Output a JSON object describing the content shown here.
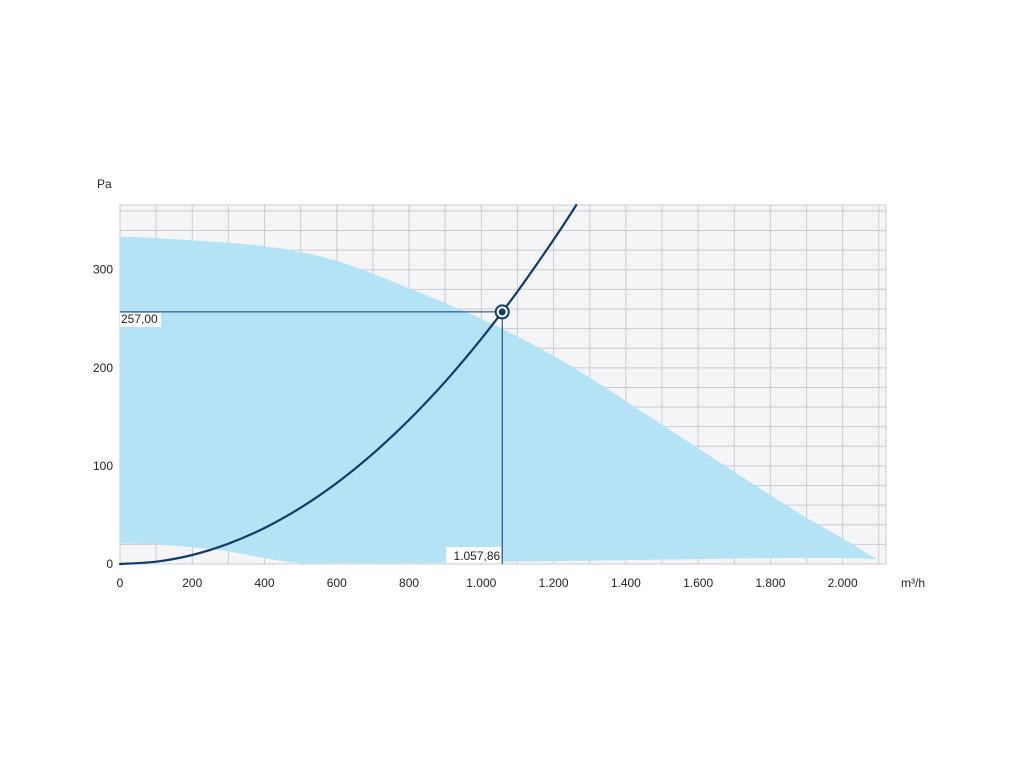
{
  "chart_data": {
    "type": "area",
    "title": "",
    "xlabel": "m³/h",
    "ylabel": "Pa",
    "xlim": [
      0,
      2120
    ],
    "ylim": [
      0,
      366
    ],
    "grid": true,
    "x_ticks": [
      {
        "value": 0,
        "label": "0"
      },
      {
        "value": 200,
        "label": "200"
      },
      {
        "value": 400,
        "label": "400"
      },
      {
        "value": 600,
        "label": "600"
      },
      {
        "value": 800,
        "label": "800"
      },
      {
        "value": 1000,
        "label": "1.000"
      },
      {
        "value": 1200,
        "label": "1.200"
      },
      {
        "value": 1400,
        "label": "1.400"
      },
      {
        "value": 1600,
        "label": "1.600"
      },
      {
        "value": 1800,
        "label": "1.800"
      },
      {
        "value": 2000,
        "label": "2.000"
      }
    ],
    "y_ticks": [
      {
        "value": 0,
        "label": "0"
      },
      {
        "value": 100,
        "label": "100"
      },
      {
        "value": 200,
        "label": "200"
      },
      {
        "value": 300,
        "label": "300"
      }
    ],
    "x_minor_step": 100,
    "y_minor_step": 20,
    "operating_range": {
      "color": "#b3e3f4",
      "upper": [
        [
          0,
          334
        ],
        [
          200,
          330
        ],
        [
          400,
          324
        ],
        [
          500,
          318
        ],
        [
          600,
          309
        ],
        [
          700,
          296
        ],
        [
          800,
          281
        ],
        [
          900,
          266
        ],
        [
          1000,
          250
        ],
        [
          1100,
          232
        ],
        [
          1200,
          212
        ],
        [
          1300,
          190
        ],
        [
          1400,
          166
        ],
        [
          1500,
          142
        ],
        [
          1600,
          118
        ],
        [
          1700,
          94
        ],
        [
          1800,
          70
        ],
        [
          1900,
          47
        ],
        [
          2000,
          26
        ],
        [
          2093,
          5
        ]
      ],
      "lower": [
        [
          2093,
          5
        ],
        [
          2000,
          6
        ],
        [
          1800,
          6
        ],
        [
          1600,
          5
        ],
        [
          1400,
          4
        ],
        [
          1200,
          3
        ],
        [
          1000,
          2
        ],
        [
          800,
          1
        ],
        [
          600,
          1
        ],
        [
          500,
          1
        ],
        [
          400,
          6
        ],
        [
          300,
          13
        ],
        [
          200,
          17
        ],
        [
          100,
          20
        ],
        [
          0,
          21
        ]
      ]
    },
    "system_curve": {
      "color": "#123b6d",
      "points": [
        [
          0,
          0
        ],
        [
          100,
          2.3
        ],
        [
          200,
          9.2
        ],
        [
          300,
          20.7
        ],
        [
          400,
          36.7
        ],
        [
          500,
          57.4
        ],
        [
          600,
          82.6
        ],
        [
          700,
          112.5
        ],
        [
          800,
          146.9
        ],
        [
          900,
          185.9
        ],
        [
          1000,
          229.6
        ],
        [
          1100,
          277.8
        ],
        [
          1200,
          330.6
        ],
        [
          1263,
          366
        ]
      ]
    },
    "operating_point": {
      "x": 1057.86,
      "y": 257.0,
      "x_label": "1.057,86",
      "y_label": "257,00"
    }
  },
  "colors": {
    "plot_background": "#f5f5f7",
    "grid": "#c9ccd3",
    "fill": "#b3e3f4",
    "curve": "#123b6d",
    "guide": "#123b6d"
  }
}
